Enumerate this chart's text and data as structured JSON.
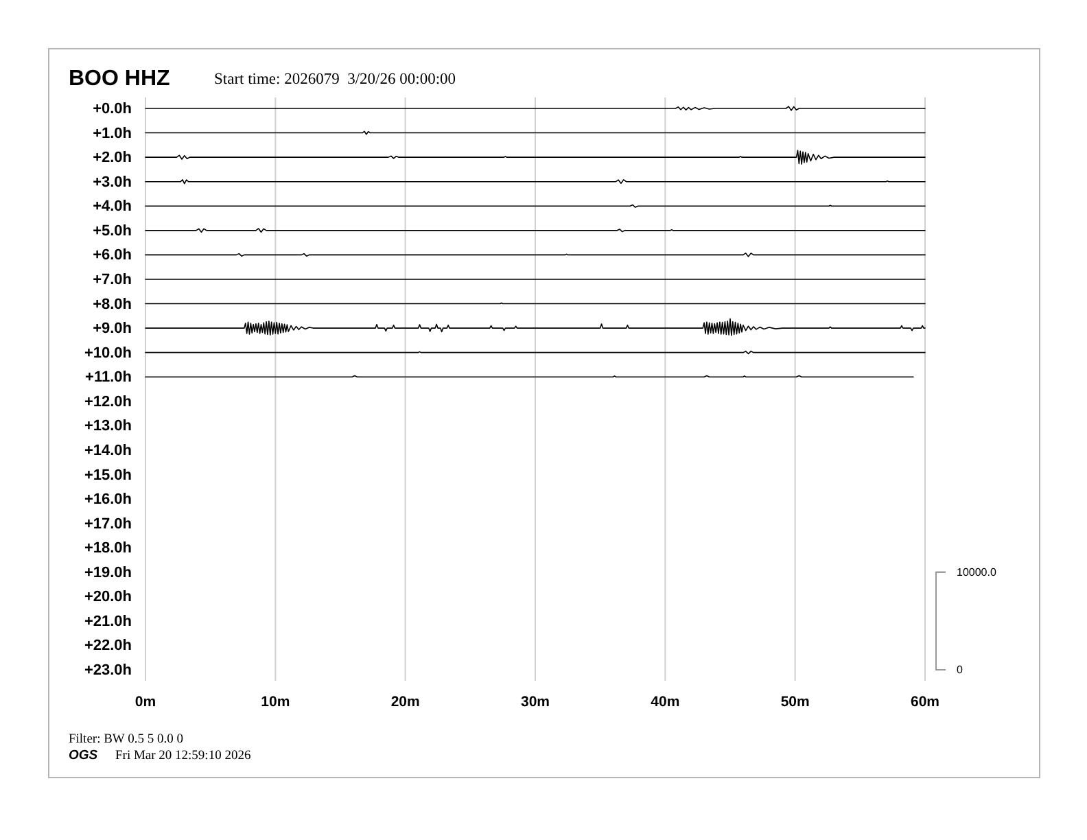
{
  "chart_data": {
    "type": "line",
    "title": "BOO HHZ",
    "subtitle": "Start time: 2026079  3/20/26 00:00:00",
    "annotations": [
      "Filter: BW 0.5 5 0.0 0",
      "OGS",
      "Fri Mar 20 12:59:10 2026"
    ],
    "xlim": [
      0,
      60
    ],
    "xticks": [
      {
        "value": 0,
        "label": "0m"
      },
      {
        "value": 10,
        "label": "10m"
      },
      {
        "value": 20,
        "label": "20m"
      },
      {
        "value": 30,
        "label": "30m"
      },
      {
        "value": 40,
        "label": "40m"
      },
      {
        "value": 50,
        "label": "50m"
      },
      {
        "value": 60,
        "label": "60m"
      }
    ],
    "ylim": [
      23.45,
      -0.45
    ],
    "yticks": [
      {
        "value": 0,
        "label": "+0.0h"
      },
      {
        "value": 1,
        "label": "+1.0h"
      },
      {
        "value": 2,
        "label": "+2.0h"
      },
      {
        "value": 3,
        "label": "+3.0h"
      },
      {
        "value": 4,
        "label": "+4.0h"
      },
      {
        "value": 5,
        "label": "+5.0h"
      },
      {
        "value": 6,
        "label": "+6.0h"
      },
      {
        "value": 7,
        "label": "+7.0h"
      },
      {
        "value": 8,
        "label": "+8.0h"
      },
      {
        "value": 9,
        "label": "+9.0h"
      },
      {
        "value": 10,
        "label": "+10.0h"
      },
      {
        "value": 11,
        "label": "+11.0h"
      },
      {
        "value": 12,
        "label": "+12.0h"
      },
      {
        "value": 13,
        "label": "+13.0h"
      },
      {
        "value": 14,
        "label": "+14.0h"
      },
      {
        "value": 15,
        "label": "+15.0h"
      },
      {
        "value": 16,
        "label": "+16.0h"
      },
      {
        "value": 17,
        "label": "+17.0h"
      },
      {
        "value": 18,
        "label": "+18.0h"
      },
      {
        "value": 19,
        "label": "+19.0h"
      },
      {
        "value": 20,
        "label": "+20.0h"
      },
      {
        "value": 21,
        "label": "+21.0h"
      },
      {
        "value": 22,
        "label": "+22.0h"
      },
      {
        "value": 23,
        "label": "+23.0h"
      }
    ],
    "y2lim": [
      -1125,
      58625
    ],
    "y2ticks": [
      0,
      {
        "value": 10000,
        "label": "10000.0"
      }
    ],
    "grid": "x",
    "series": [
      {
        "color": "#000000",
        "x": [
          0,
          40.8,
          41.0,
          41.2,
          41.4,
          41.6,
          41.8,
          42.0,
          42.3,
          42.6,
          43.0,
          43.4,
          43.8,
          49.3,
          49.5,
          49.7,
          49.9,
          50.1,
          50.3,
          60
        ],
        "values": [
          0,
          0,
          -0.06,
          0.05,
          -0.05,
          0.06,
          -0.04,
          0.05,
          -0.04,
          0.04,
          -0.03,
          0.03,
          0,
          0,
          -0.08,
          0.08,
          -0.07,
          0.06,
          0,
          0
        ]
      },
      {
        "color": "#000000",
        "x": [
          0,
          16.7,
          16.85,
          17.0,
          17.15,
          17.3,
          60
        ],
        "values": [
          1,
          1,
          0.94,
          1.06,
          0.95,
          1,
          1
        ]
      },
      {
        "color": "#000000",
        "x": [
          0,
          2.4,
          2.6,
          2.8,
          3.0,
          3.2,
          3.4,
          18.7,
          18.9,
          19.1,
          19.3,
          19.5,
          27.6,
          27.7,
          27.8,
          45.7,
          45.8,
          45.9,
          50.1,
          50.2,
          50.3,
          50.4,
          50.5,
          50.6,
          50.7,
          50.8,
          50.9,
          51.0,
          51.2,
          51.4,
          51.6,
          51.8,
          52.0,
          52.3,
          52.6,
          53.0,
          60
        ],
        "values": [
          2,
          2,
          1.92,
          2.08,
          1.93,
          2.06,
          2,
          2,
          1.95,
          2.05,
          1.96,
          2,
          2,
          1.97,
          2,
          2,
          1.97,
          2,
          2,
          1.72,
          2.26,
          1.75,
          2.28,
          1.78,
          2.22,
          1.8,
          2.2,
          1.85,
          2.15,
          1.88,
          2.1,
          1.92,
          2.06,
          1.95,
          2.04,
          2,
          2
        ]
      },
      {
        "color": "#000000",
        "x": [
          0,
          2.7,
          2.85,
          3.0,
          3.15,
          3.3,
          36.2,
          36.4,
          36.6,
          36.8,
          37.0,
          57.0,
          57.1,
          57.2,
          60
        ],
        "values": [
          3,
          3,
          2.92,
          3.08,
          2.93,
          3,
          3,
          2.93,
          3.07,
          2.92,
          3,
          3,
          2.97,
          3,
          3
        ]
      },
      {
        "color": "#000000",
        "x": [
          0,
          37.3,
          37.5,
          37.7,
          37.9,
          52.6,
          52.7,
          52.8,
          60
        ],
        "values": [
          4,
          4,
          3.95,
          4.05,
          4,
          4,
          3.97,
          4,
          4
        ]
      },
      {
        "color": "#000000",
        "x": [
          0,
          3.9,
          4.1,
          4.3,
          4.5,
          4.7,
          8.5,
          8.7,
          8.9,
          9.1,
          9.3,
          36.3,
          36.5,
          36.7,
          36.9,
          40.4,
          40.5,
          40.6,
          60
        ],
        "values": [
          5,
          5,
          4.93,
          5.07,
          4.93,
          5,
          5,
          4.92,
          5.07,
          4.93,
          5,
          5,
          4.95,
          5.05,
          5,
          5,
          4.97,
          5,
          5
        ]
      },
      {
        "color": "#000000",
        "x": [
          0,
          7.0,
          7.2,
          7.4,
          7.6,
          12.0,
          12.2,
          12.4,
          12.6,
          32.3,
          32.4,
          32.5,
          46.0,
          46.2,
          46.4,
          46.6,
          46.8,
          60
        ],
        "values": [
          6,
          6,
          5.95,
          6.05,
          6,
          6,
          5.95,
          6.05,
          6,
          6,
          5.97,
          6,
          6,
          5.93,
          6.07,
          5.93,
          6,
          6
        ]
      },
      {
        "color": "#000000",
        "x": [
          0,
          60
        ],
        "values": [
          7,
          7
        ]
      },
      {
        "color": "#000000",
        "x": [
          0,
          27.3,
          27.4,
          27.5,
          60
        ],
        "values": [
          8,
          8,
          7.97,
          8,
          8
        ]
      },
      {
        "color": "#000000",
        "x": [
          0,
          7.6,
          7.7,
          7.8,
          7.9,
          8.0,
          8.1,
          8.2,
          8.3,
          8.4,
          8.5,
          8.6,
          8.7,
          8.8,
          8.9,
          9.0,
          9.1,
          9.2,
          9.3,
          9.4,
          9.5,
          9.6,
          9.7,
          9.8,
          9.9,
          10.0,
          10.1,
          10.2,
          10.3,
          10.4,
          10.5,
          10.6,
          10.7,
          10.8,
          10.9,
          11.0,
          11.2,
          11.4,
          11.6,
          11.8,
          12.0,
          12.3,
          12.6,
          12.9,
          17.7,
          17.8,
          17.9,
          18.4,
          18.5,
          18.6,
          19.0,
          19.1,
          19.2,
          21.0,
          21.1,
          21.2,
          21.8,
          21.9,
          22.0,
          22.3,
          22.4,
          22.5,
          22.7,
          22.8,
          22.9,
          23.2,
          23.3,
          23.4,
          26.5,
          26.6,
          26.7,
          27.5,
          27.6,
          27.7,
          28.4,
          28.5,
          28.6,
          35.0,
          35.1,
          35.2,
          37.0,
          37.1,
          37.2,
          42.9,
          43.0,
          43.1,
          43.2,
          43.3,
          43.4,
          43.5,
          43.6,
          43.7,
          43.8,
          43.9,
          44.0,
          44.1,
          44.2,
          44.3,
          44.4,
          44.5,
          44.6,
          44.7,
          44.8,
          44.9,
          45.0,
          45.1,
          45.2,
          45.3,
          45.4,
          45.5,
          45.6,
          45.7,
          45.8,
          45.9,
          46.0,
          46.2,
          46.4,
          46.6,
          46.8,
          47.0,
          47.3,
          47.6,
          48.0,
          48.5,
          49.0,
          52.6,
          52.7,
          52.8,
          58.1,
          58.2,
          58.3,
          58.9,
          59.0,
          59.1,
          59.7,
          59.8,
          59.9,
          60
        ],
        "values": [
          9,
          9,
          8.8,
          9.22,
          8.75,
          9.25,
          8.8,
          9.2,
          8.85,
          9.15,
          8.82,
          9.18,
          8.8,
          9.22,
          8.85,
          9.18,
          8.78,
          9.24,
          8.74,
          9.26,
          8.72,
          9.28,
          8.75,
          9.25,
          8.78,
          9.22,
          8.76,
          9.24,
          8.8,
          9.2,
          8.82,
          9.18,
          8.84,
          9.16,
          8.86,
          9.14,
          8.9,
          9.08,
          8.93,
          9.06,
          8.95,
          9.04,
          8.97,
          9,
          9,
          8.85,
          9,
          9,
          9.12,
          9,
          9,
          8.88,
          9,
          9,
          8.86,
          9,
          9,
          9.14,
          9,
          9,
          8.84,
          9,
          9,
          9.15,
          9,
          9,
          8.88,
          9,
          9,
          8.9,
          9,
          9,
          9.1,
          9,
          9,
          8.92,
          9,
          9,
          8.83,
          9,
          9,
          8.88,
          9,
          9,
          8.78,
          9.22,
          8.75,
          9.25,
          8.78,
          9.2,
          8.8,
          9.22,
          8.82,
          9.18,
          8.78,
          9.22,
          8.75,
          9.25,
          8.76,
          9.24,
          8.74,
          9.26,
          8.72,
          9.28,
          8.62,
          9.3,
          8.74,
          9.26,
          8.76,
          9.24,
          8.8,
          9.2,
          8.84,
          9.16,
          8.88,
          9.1,
          8.92,
          9.07,
          8.94,
          9.05,
          8.96,
          9.04,
          8.97,
          9.03,
          9,
          9,
          8.95,
          9,
          9,
          8.9,
          9,
          9,
          9.1,
          9,
          9,
          8.9,
          9,
          9
        ]
      },
      {
        "color": "#000000",
        "x": [
          0,
          21.0,
          21.1,
          21.2,
          46.0,
          46.2,
          46.4,
          46.6,
          46.8,
          60
        ],
        "values": [
          10,
          10,
          9.97,
          10,
          10,
          9.95,
          10.05,
          9.95,
          10,
          10
        ]
      },
      {
        "color": "#000000",
        "x": [
          0,
          15.9,
          16.1,
          16.3,
          36.0,
          36.1,
          36.2,
          43.0,
          43.2,
          43.4,
          46.0,
          46.1,
          46.2,
          50.1,
          50.3,
          50.5,
          59.1
        ],
        "values": [
          11,
          11,
          10.95,
          11,
          11,
          10.96,
          11,
          11,
          10.95,
          11,
          11,
          10.96,
          11,
          11,
          10.95,
          11,
          11
        ]
      }
    ]
  }
}
